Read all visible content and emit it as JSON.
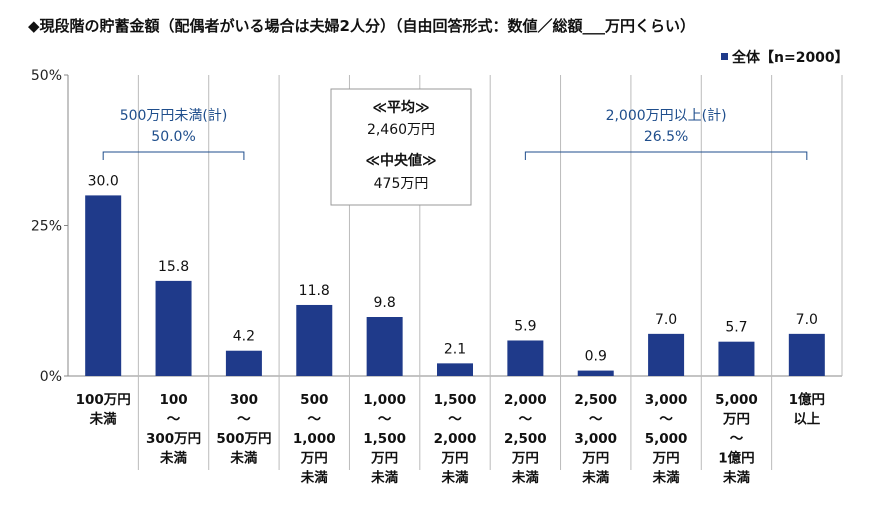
{
  "chart_data": {
    "type": "bar",
    "title": "◆現段階の貯蓄金額（配偶者がいる場合は夫婦2人分）（自由回答形式：数値／総額___万円くらい）",
    "legend": {
      "label": "全体【n=2000】",
      "placement": "top-right"
    },
    "ylim": [
      0,
      50
    ],
    "yticks": [
      "0%",
      "25%",
      "50%"
    ],
    "ytick_values": [
      0,
      25,
      50
    ],
    "grid": false,
    "colors": {
      "bar": "#1f3a8a",
      "annotation": "#1f4e8c"
    },
    "categories": [
      [
        "100万円",
        "未満"
      ],
      [
        "100",
        "～",
        "300万円",
        "未満"
      ],
      [
        "300",
        "～",
        "500万円",
        "未満"
      ],
      [
        "500",
        "～",
        "1,000",
        "万円",
        "未満"
      ],
      [
        "1,000",
        "～",
        "1,500",
        "万円",
        "未満"
      ],
      [
        "1,500",
        "～",
        "2,000",
        "万円",
        "未満"
      ],
      [
        "2,000",
        "～",
        "2,500",
        "万円",
        "未満"
      ],
      [
        "2,500",
        "～",
        "3,000",
        "万円",
        "未満"
      ],
      [
        "3,000",
        "～",
        "5,000",
        "万円",
        "未満"
      ],
      [
        "5,000",
        "万円",
        "～",
        "1億円",
        "未満"
      ],
      [
        "1億円",
        "以上"
      ]
    ],
    "values": [
      30.0,
      15.8,
      4.2,
      11.8,
      9.8,
      2.1,
      5.9,
      0.9,
      7.0,
      5.7,
      7.0
    ],
    "value_labels": [
      "30.0",
      "15.8",
      "4.2",
      "11.8",
      "9.8",
      "2.1",
      "5.9",
      "0.9",
      "7.0",
      "5.7",
      "7.0"
    ],
    "annotations": {
      "left_group": {
        "label": "500万円未満(計)",
        "value": "50.0%",
        "from": 0,
        "to": 2
      },
      "right_group": {
        "label": "2,000万円以上(計)",
        "value": "26.5%",
        "from": 6,
        "to": 10
      },
      "summary": [
        "≪平均≫",
        "2,460万円",
        "≪中央値≫",
        "475万円"
      ]
    }
  }
}
